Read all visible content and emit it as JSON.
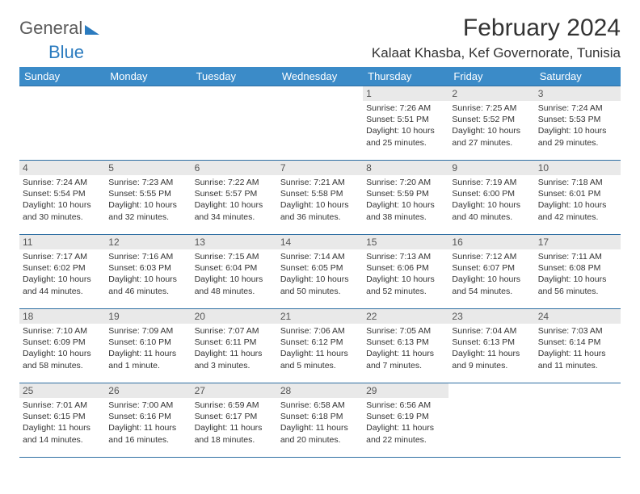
{
  "logo": {
    "word1": "General",
    "word2": "Blue"
  },
  "title": "February 2024",
  "location": "Kalaat Khasba, Kef Governorate, Tunisia",
  "colors": {
    "header_bg": "#3b8bc8",
    "border": "#2f6fa3",
    "daynum_bg": "#e9e9e9",
    "text": "#333333",
    "logo_gray": "#5a5a5a",
    "logo_blue": "#2b7bbf"
  },
  "weekdays": [
    "Sunday",
    "Monday",
    "Tuesday",
    "Wednesday",
    "Thursday",
    "Friday",
    "Saturday"
  ],
  "weeks": [
    [
      null,
      null,
      null,
      null,
      {
        "n": "1",
        "sunrise": "7:26 AM",
        "sunset": "5:51 PM",
        "daylight": "10 hours and 25 minutes."
      },
      {
        "n": "2",
        "sunrise": "7:25 AM",
        "sunset": "5:52 PM",
        "daylight": "10 hours and 27 minutes."
      },
      {
        "n": "3",
        "sunrise": "7:24 AM",
        "sunset": "5:53 PM",
        "daylight": "10 hours and 29 minutes."
      }
    ],
    [
      {
        "n": "4",
        "sunrise": "7:24 AM",
        "sunset": "5:54 PM",
        "daylight": "10 hours and 30 minutes."
      },
      {
        "n": "5",
        "sunrise": "7:23 AM",
        "sunset": "5:55 PM",
        "daylight": "10 hours and 32 minutes."
      },
      {
        "n": "6",
        "sunrise": "7:22 AM",
        "sunset": "5:57 PM",
        "daylight": "10 hours and 34 minutes."
      },
      {
        "n": "7",
        "sunrise": "7:21 AM",
        "sunset": "5:58 PM",
        "daylight": "10 hours and 36 minutes."
      },
      {
        "n": "8",
        "sunrise": "7:20 AM",
        "sunset": "5:59 PM",
        "daylight": "10 hours and 38 minutes."
      },
      {
        "n": "9",
        "sunrise": "7:19 AM",
        "sunset": "6:00 PM",
        "daylight": "10 hours and 40 minutes."
      },
      {
        "n": "10",
        "sunrise": "7:18 AM",
        "sunset": "6:01 PM",
        "daylight": "10 hours and 42 minutes."
      }
    ],
    [
      {
        "n": "11",
        "sunrise": "7:17 AM",
        "sunset": "6:02 PM",
        "daylight": "10 hours and 44 minutes."
      },
      {
        "n": "12",
        "sunrise": "7:16 AM",
        "sunset": "6:03 PM",
        "daylight": "10 hours and 46 minutes."
      },
      {
        "n": "13",
        "sunrise": "7:15 AM",
        "sunset": "6:04 PM",
        "daylight": "10 hours and 48 minutes."
      },
      {
        "n": "14",
        "sunrise": "7:14 AM",
        "sunset": "6:05 PM",
        "daylight": "10 hours and 50 minutes."
      },
      {
        "n": "15",
        "sunrise": "7:13 AM",
        "sunset": "6:06 PM",
        "daylight": "10 hours and 52 minutes."
      },
      {
        "n": "16",
        "sunrise": "7:12 AM",
        "sunset": "6:07 PM",
        "daylight": "10 hours and 54 minutes."
      },
      {
        "n": "17",
        "sunrise": "7:11 AM",
        "sunset": "6:08 PM",
        "daylight": "10 hours and 56 minutes."
      }
    ],
    [
      {
        "n": "18",
        "sunrise": "7:10 AM",
        "sunset": "6:09 PM",
        "daylight": "10 hours and 58 minutes."
      },
      {
        "n": "19",
        "sunrise": "7:09 AM",
        "sunset": "6:10 PM",
        "daylight": "11 hours and 1 minute."
      },
      {
        "n": "20",
        "sunrise": "7:07 AM",
        "sunset": "6:11 PM",
        "daylight": "11 hours and 3 minutes."
      },
      {
        "n": "21",
        "sunrise": "7:06 AM",
        "sunset": "6:12 PM",
        "daylight": "11 hours and 5 minutes."
      },
      {
        "n": "22",
        "sunrise": "7:05 AM",
        "sunset": "6:13 PM",
        "daylight": "11 hours and 7 minutes."
      },
      {
        "n": "23",
        "sunrise": "7:04 AM",
        "sunset": "6:13 PM",
        "daylight": "11 hours and 9 minutes."
      },
      {
        "n": "24",
        "sunrise": "7:03 AM",
        "sunset": "6:14 PM",
        "daylight": "11 hours and 11 minutes."
      }
    ],
    [
      {
        "n": "25",
        "sunrise": "7:01 AM",
        "sunset": "6:15 PM",
        "daylight": "11 hours and 14 minutes."
      },
      {
        "n": "26",
        "sunrise": "7:00 AM",
        "sunset": "6:16 PM",
        "daylight": "11 hours and 16 minutes."
      },
      {
        "n": "27",
        "sunrise": "6:59 AM",
        "sunset": "6:17 PM",
        "daylight": "11 hours and 18 minutes."
      },
      {
        "n": "28",
        "sunrise": "6:58 AM",
        "sunset": "6:18 PM",
        "daylight": "11 hours and 20 minutes."
      },
      {
        "n": "29",
        "sunrise": "6:56 AM",
        "sunset": "6:19 PM",
        "daylight": "11 hours and 22 minutes."
      },
      null,
      null
    ]
  ],
  "labels": {
    "sunrise": "Sunrise: ",
    "sunset": "Sunset: ",
    "daylight": "Daylight: "
  }
}
